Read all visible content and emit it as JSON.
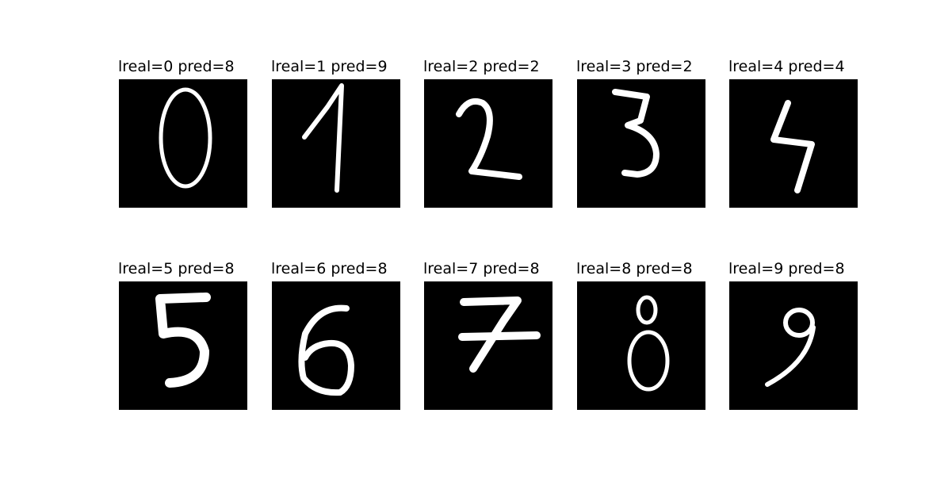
{
  "panels": [
    {
      "title": "lreal=0 pred=8",
      "digit": "0"
    },
    {
      "title": "lreal=1 pred=9",
      "digit": "1"
    },
    {
      "title": "lreal=2 pred=2",
      "digit": "2"
    },
    {
      "title": "lreal=3 pred=2",
      "digit": "3"
    },
    {
      "title": "lreal=4 pred=4",
      "digit": "4"
    },
    {
      "title": "lreal=5 pred=8",
      "digit": "5"
    },
    {
      "title": "lreal=6 pred=8",
      "digit": "6"
    },
    {
      "title": "lreal=7 pred=8",
      "digit": "7"
    },
    {
      "title": "lreal=8 pred=8",
      "digit": "8"
    },
    {
      "title": "lreal=9 pred=8",
      "digit": "9"
    }
  ],
  "colors": {
    "image_background": "#000000",
    "stroke": "#ffffff",
    "page_background": "#ffffff"
  }
}
